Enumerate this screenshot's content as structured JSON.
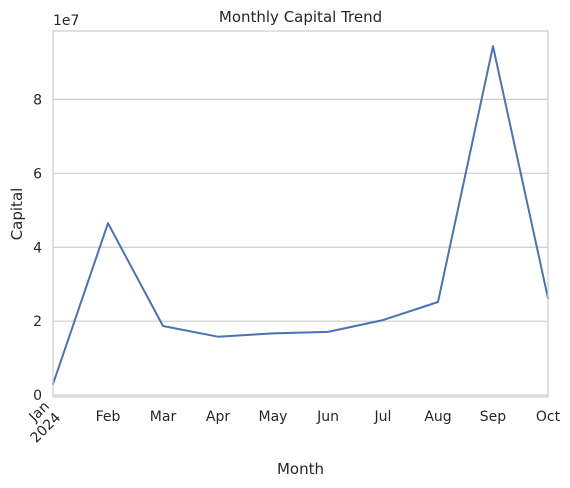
{
  "chart_data": {
    "type": "line",
    "title": "Monthly Capital Trend",
    "xlabel": "Month",
    "ylabel": "Capital",
    "y_scale_label": "1e7",
    "x_tick_labels": [
      {
        "month": "Jan",
        "year": "2024",
        "rotated": true
      },
      {
        "month": "Feb"
      },
      {
        "month": "Mar"
      },
      {
        "month": "Apr"
      },
      {
        "month": "May"
      },
      {
        "month": "Jun"
      },
      {
        "month": "Jul"
      },
      {
        "month": "Aug"
      },
      {
        "month": "Sep"
      },
      {
        "month": "Oct"
      }
    ],
    "y_ticks": [
      0,
      2,
      4,
      6,
      8
    ],
    "y_tick_labels": [
      "0",
      "2",
      "4",
      "6",
      "8"
    ],
    "ylim": [
      -0.05,
      9.85
    ],
    "grid": "horizontal",
    "series": [
      {
        "color": "#4c72b0",
        "values": [
          0.3,
          4.65,
          1.87,
          1.58,
          1.67,
          1.71,
          2.03,
          2.52,
          9.44,
          2.62
        ]
      }
    ]
  }
}
